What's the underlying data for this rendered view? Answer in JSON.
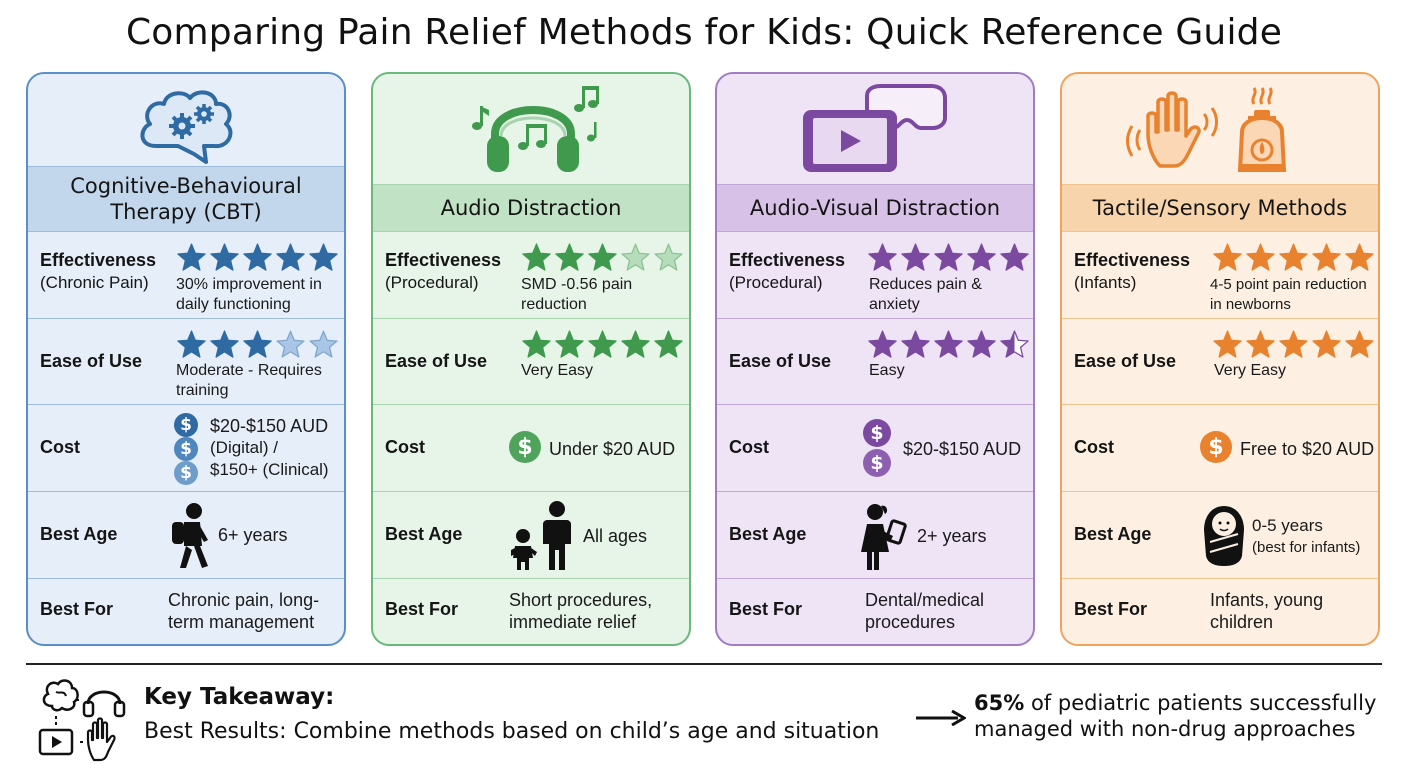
{
  "title": "Comparing Pain Relief Methods for Kids: Quick Reference Guide",
  "row_labels": {
    "effectiveness": "Effectiveness",
    "ease": "Ease of Use",
    "cost": "Cost",
    "age": "Best Age",
    "best_for": "Best For"
  },
  "cards": [
    {
      "name": "Cognitive-Behavioural Therapy (CBT)",
      "name_line1": "Cognitive-Behavioural",
      "name_line2": "Therapy (CBT)",
      "icon": "brain-gears-icon",
      "colors": {
        "accent": "#2f6aa3",
        "border": "#5a8fc7",
        "bg": "#e6eff9",
        "header": "#c2d6ec",
        "line": "#9fbbdc"
      },
      "effectiveness_context": "(Chronic Pain)",
      "effectiveness_rating": 5,
      "effectiveness_text": "30% improvement in daily functioning",
      "ease_rating": 3,
      "ease_text": "Moderate - Requires training",
      "cost_lines": [
        "$20-$150 AUD",
        "(Digital) /",
        "$150+ (Clinical)"
      ],
      "age_icon": "child-backpack-icon",
      "age": "6+ years",
      "best_for": "Chronic pain, long-term management"
    },
    {
      "name": "Audio Distraction",
      "icon": "headphones-music-icon",
      "colors": {
        "accent": "#3f9a4e",
        "border": "#6ab87a",
        "bg": "#e7f4e8",
        "header": "#c1e2c5",
        "line": "#a7d3ae"
      },
      "effectiveness_context": "(Procedural)",
      "effectiveness_rating": 3,
      "effectiveness_text": "SMD -0.56 pain reduction",
      "ease_rating": 5,
      "ease_text": "Very Easy",
      "cost": "Under $20 AUD",
      "age_icon": "parent-baby-icon",
      "age": "All ages",
      "best_for": "Short procedures, immediate relief"
    },
    {
      "name": "Audio-Visual Distraction",
      "icon": "tablet-vr-icon",
      "colors": {
        "accent": "#7b4aa0",
        "border": "#a07cc2",
        "bg": "#efe4f5",
        "header": "#d7c1e7",
        "line": "#c2a8d8"
      },
      "effectiveness_context": "(Procedural)",
      "effectiveness_rating": 5,
      "effectiveness_text": "Reduces pain & anxiety",
      "ease_rating": 4.5,
      "ease_text": "Easy",
      "cost": "$20-$150 AUD",
      "age_icon": "child-tablet-icon",
      "age": "2+ years",
      "best_for": "Dental/medical procedures"
    },
    {
      "name": "Tactile/Sensory Methods",
      "icon": "hand-aroma-icon",
      "colors": {
        "accent": "#e8822e",
        "border": "#f0a35c",
        "bg": "#fdf0e3",
        "header": "#f8d4ad",
        "line": "#f2c28f"
      },
      "effectiveness_context": "(Infants)",
      "effectiveness_rating": 5,
      "effectiveness_text": "4-5 point pain reduction in newborns",
      "ease_rating": 5,
      "ease_text": "Very Easy",
      "cost": "Free to $20 AUD",
      "age_icon": "swaddled-baby-icon",
      "age": "0-5 years",
      "age_note": "(best for infants)",
      "best_for": "Infants, young children"
    }
  ],
  "key_takeaway": {
    "heading": "Key Takeaway:",
    "label": "Best Results:",
    "text": "Combine methods based on child’s age and situation",
    "stat_value": "65%",
    "stat_line1": "of pediatric patients successfully",
    "stat_line2": "managed with non-drug approaches"
  }
}
